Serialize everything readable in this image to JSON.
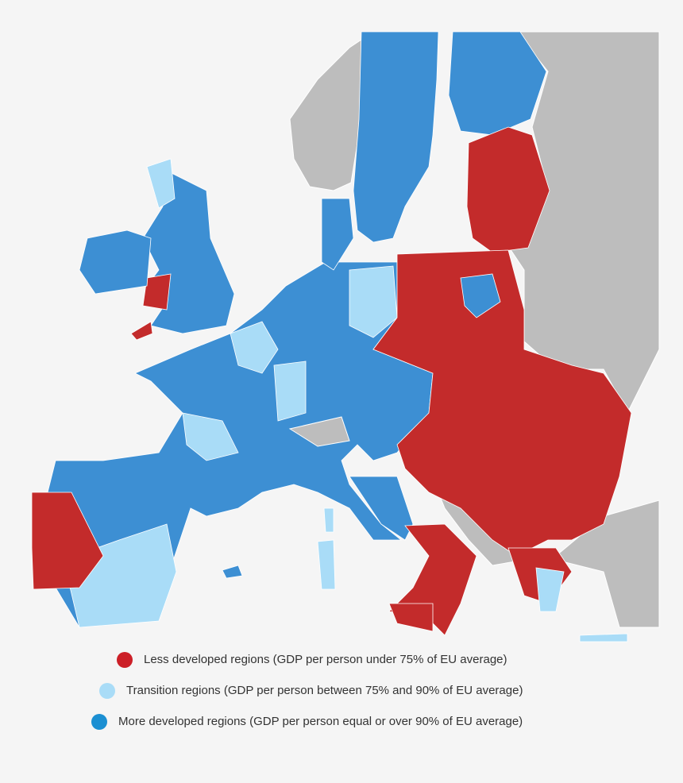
{
  "legend": {
    "items": [
      {
        "label": "Less developed regions (GDP per person under 75% of EU average)",
        "color": "#cc1f27"
      },
      {
        "label": "Transition regions (GDP per person between 75% and 90% of EU average)",
        "color": "#a9dcf7"
      },
      {
        "label": "More developed regions (GDP per person equal or over 90% of EU average)",
        "color": "#1b8fd2"
      }
    ]
  }
}
